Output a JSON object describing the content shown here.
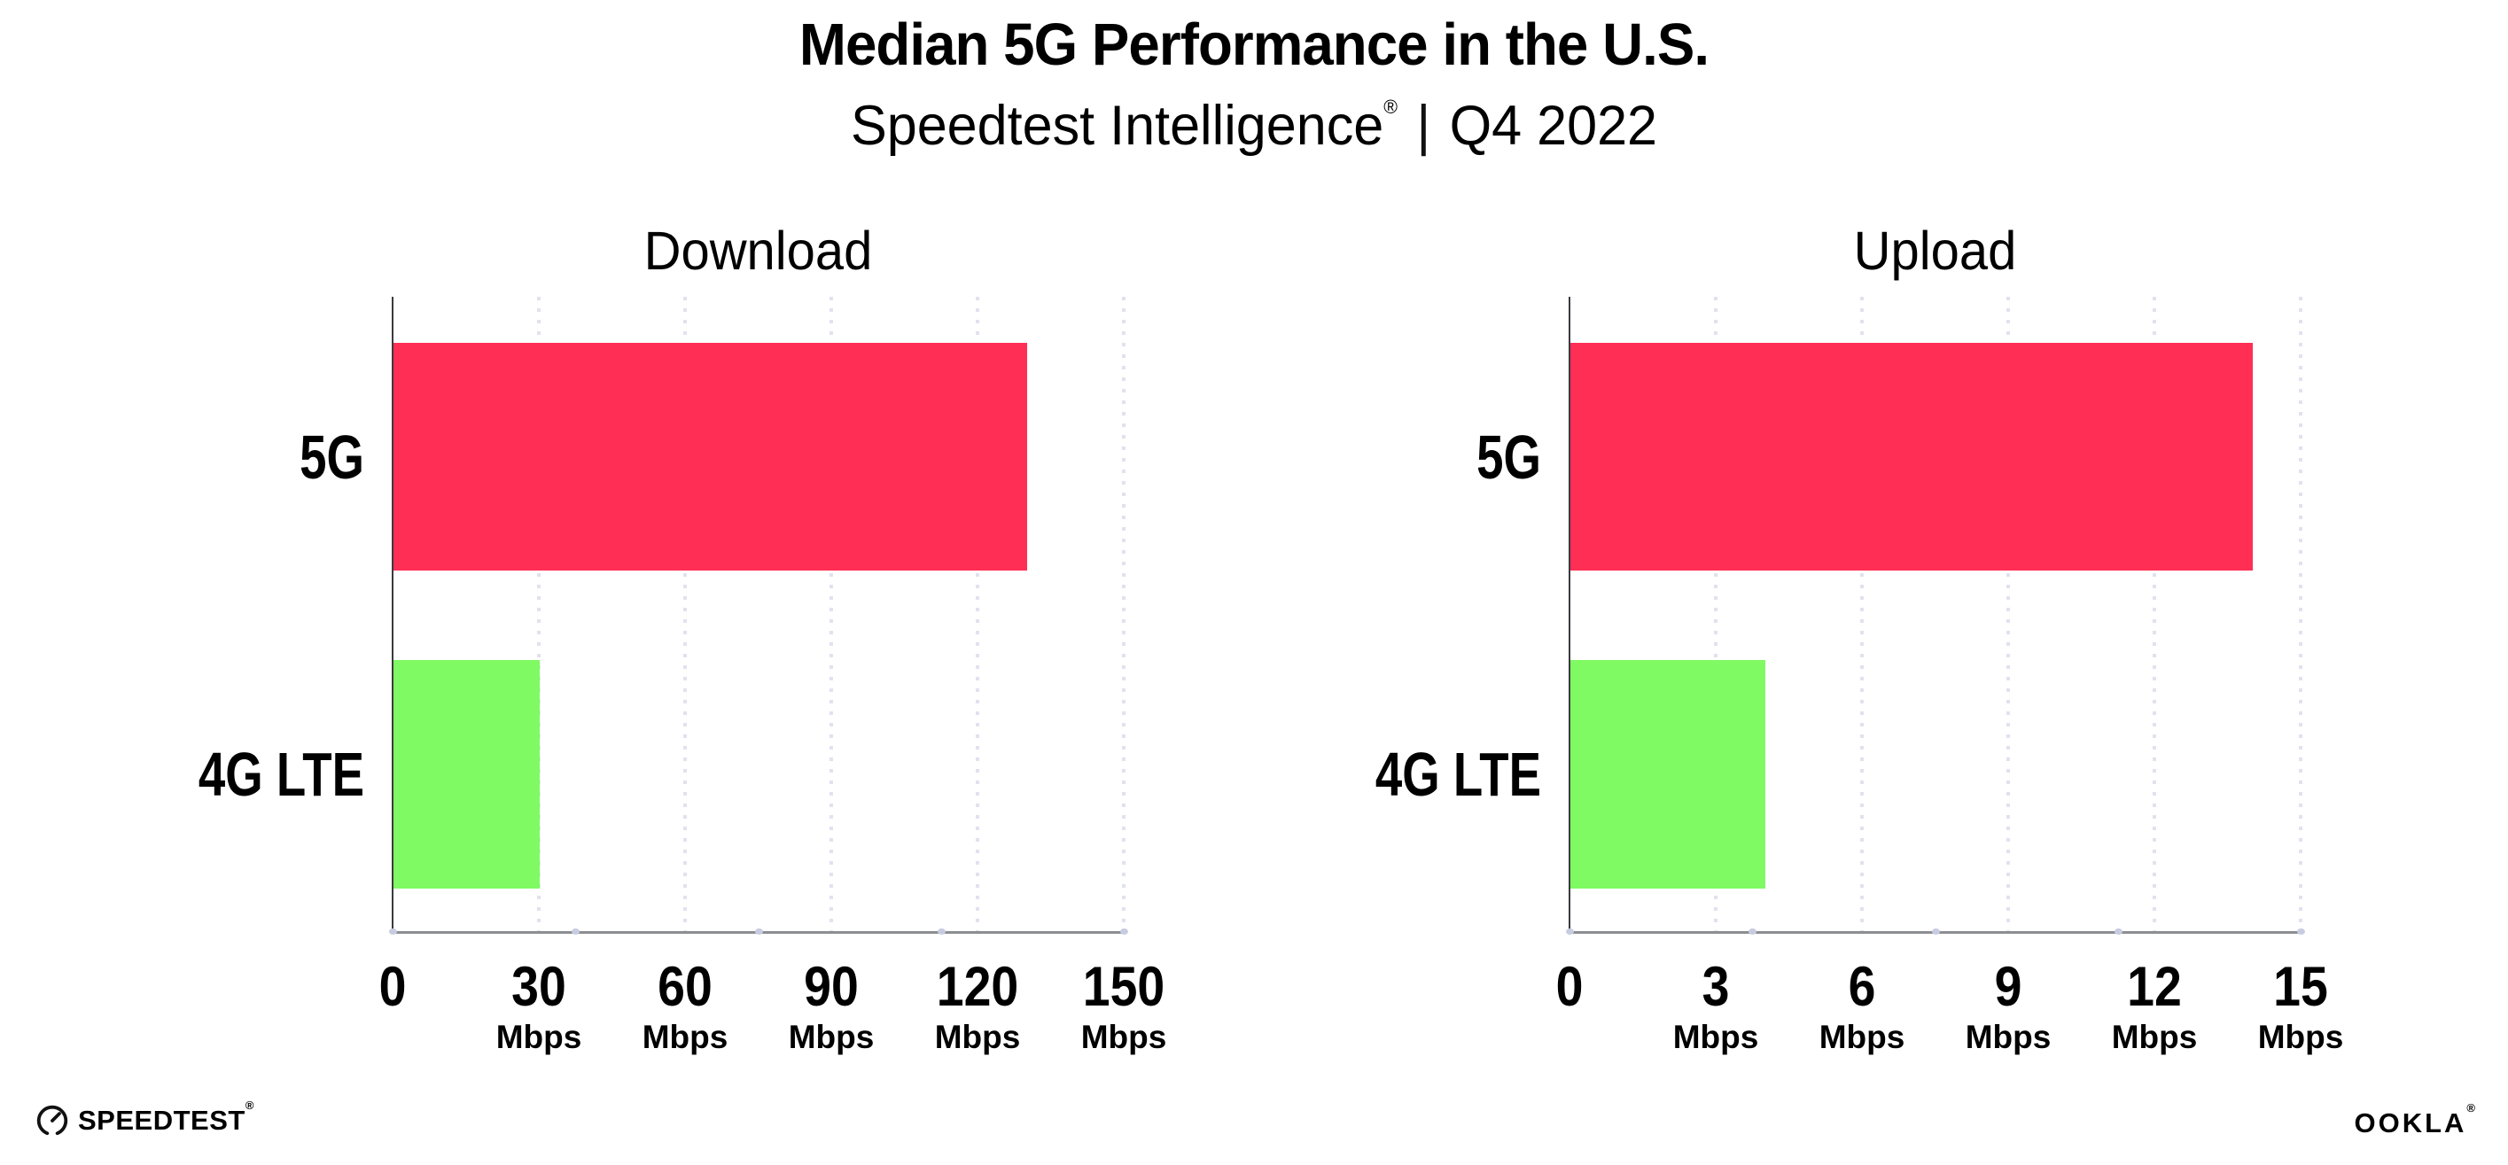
{
  "header": {
    "title": "Median 5G Performance in the U.S.",
    "subtitle_brand": "Speedtest Intelligence",
    "subtitle_reg": "®",
    "subtitle_sep": "|",
    "subtitle_period": "Q4 2022"
  },
  "colors": {
    "bar_5g": "#FF2E55",
    "bar_4g": "#7FFA63",
    "grid": "#E0E2EF",
    "axis": "#8D8E91",
    "yaxis": "#3A3B40",
    "tick_dot": "#C7CCE0",
    "text": "#000000"
  },
  "chart_data": [
    {
      "type": "bar",
      "orientation": "horizontal",
      "title": "Download",
      "categories": [
        "5G",
        "4G LTE"
      ],
      "values": [
        130,
        30
      ],
      "unit": "Mbps",
      "xlim": [
        0,
        150
      ],
      "xticks": [
        0,
        30,
        60,
        90,
        120,
        150
      ],
      "grid": "dotted-vertical",
      "legend": "none",
      "bar_colors": [
        "#FF2E55",
        "#7FFA63"
      ]
    },
    {
      "type": "bar",
      "orientation": "horizontal",
      "title": "Upload",
      "categories": [
        "5G",
        "4G LTE"
      ],
      "values": [
        14,
        4
      ],
      "unit": "Mbps",
      "xlim": [
        0,
        15
      ],
      "xticks": [
        0,
        3,
        6,
        9,
        12,
        15
      ],
      "grid": "dotted-vertical",
      "legend": "none",
      "bar_colors": [
        "#FF2E55",
        "#7FFA63"
      ]
    }
  ],
  "footer": {
    "speedtest_label": "SPEEDTEST",
    "speedtest_mark": "®",
    "ookla_label": "OOKLA",
    "ookla_mark": "®"
  }
}
